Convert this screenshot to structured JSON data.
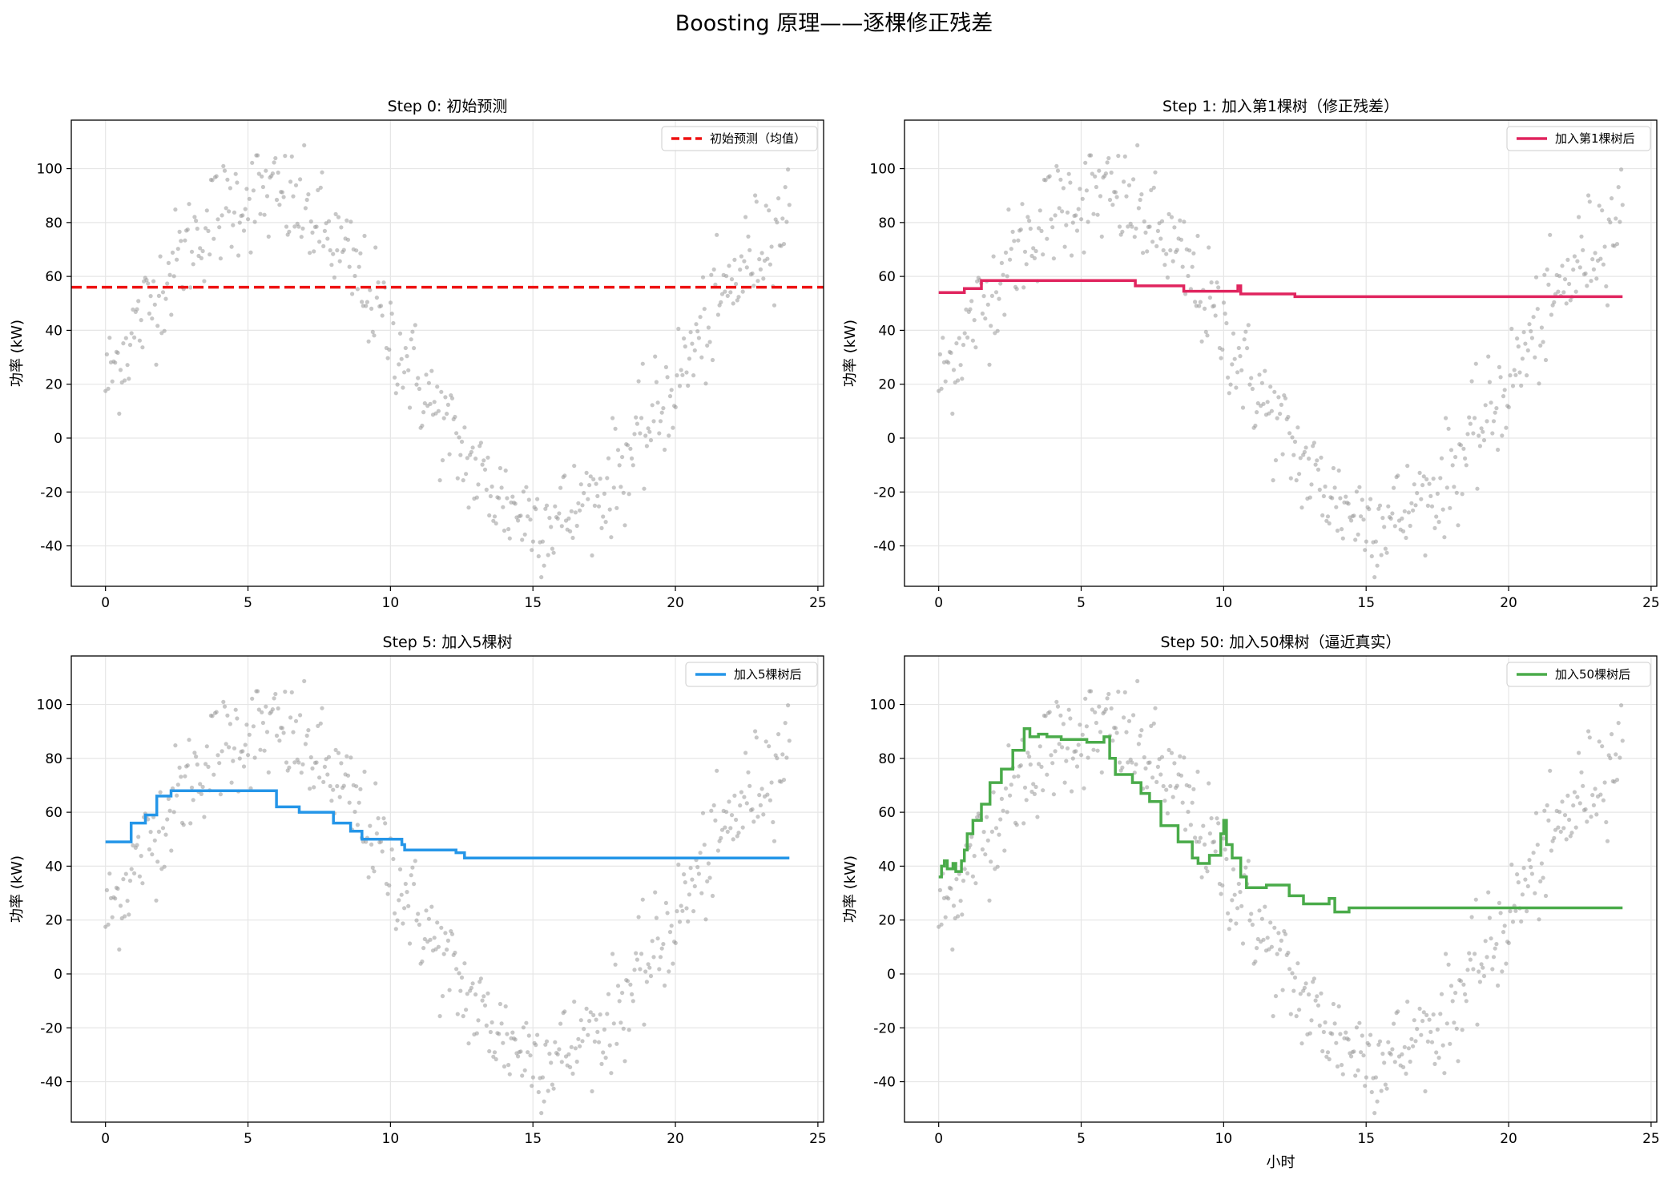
{
  "figure": {
    "title": "Boosting 原理——逐棵修正残差"
  },
  "colors": {
    "scatter": "#999999",
    "grid": "#e6e6e6",
    "axes": "#000000"
  },
  "chart_data": [
    {
      "type": "line",
      "title": "Step 0: 初始预测",
      "xlabel": "",
      "ylabel": "功率 (kW)",
      "xlim": [
        -1.2,
        25.2
      ],
      "ylim": [
        -55,
        118
      ],
      "xticks": [
        0,
        5,
        10,
        15,
        20,
        25
      ],
      "yticks": [
        -40,
        -20,
        0,
        20,
        40,
        60,
        80,
        100
      ],
      "grid": true,
      "legend_position": "top-right",
      "series": [
        {
          "name": "初始预测（均值）",
          "color": "#ee1111",
          "dashed": true,
          "x": [
            -1.2,
            25.2
          ],
          "y": [
            56,
            56
          ]
        }
      ]
    },
    {
      "type": "line",
      "title": "Step 1: 加入第1棵树（修正残差）",
      "xlabel": "",
      "ylabel": "功率 (kW)",
      "xlim": [
        -1.2,
        25.2
      ],
      "ylim": [
        -55,
        118
      ],
      "xticks": [
        0,
        5,
        10,
        15,
        20,
        25
      ],
      "yticks": [
        -40,
        -20,
        0,
        20,
        40,
        60,
        80,
        100
      ],
      "grid": true,
      "legend_position": "top-right",
      "series": [
        {
          "name": "加入第1棵树后",
          "color": "#e0245e",
          "dashed": false,
          "x": [
            0,
            0.9,
            0.9,
            1.5,
            1.5,
            6.9,
            6.9,
            8.6,
            8.6,
            10.5,
            10.5,
            10.6,
            10.6,
            12.5,
            12.5,
            24
          ],
          "y": [
            54,
            54,
            55.5,
            55.5,
            58.5,
            58.5,
            56.5,
            56.5,
            54.5,
            54.5,
            56.5,
            56.5,
            53.5,
            53.5,
            52.5,
            52.5
          ]
        }
      ]
    },
    {
      "type": "line",
      "title": "Step 5: 加入5棵树",
      "xlabel": "",
      "ylabel": "功率 (kW)",
      "xlim": [
        -1.2,
        25.2
      ],
      "ylim": [
        -55,
        118
      ],
      "xticks": [
        0,
        5,
        10,
        15,
        20,
        25
      ],
      "yticks": [
        -40,
        -20,
        0,
        20,
        40,
        60,
        80,
        100
      ],
      "grid": true,
      "legend_position": "top-right",
      "series": [
        {
          "name": "加入5棵树后",
          "color": "#2596e8",
          "dashed": false,
          "x": [
            0,
            0.9,
            0.9,
            1.4,
            1.4,
            1.8,
            1.8,
            2.3,
            2.3,
            6.0,
            6.0,
            6.8,
            6.8,
            8.0,
            8.0,
            8.6,
            8.6,
            9.0,
            9.0,
            10.4,
            10.4,
            10.5,
            10.5,
            12.3,
            12.3,
            12.6,
            12.6,
            24
          ],
          "y": [
            49,
            49,
            56,
            56,
            59,
            59,
            66,
            66,
            68,
            68,
            62,
            62,
            60,
            60,
            56,
            56,
            53,
            53,
            50,
            50,
            48,
            48,
            46,
            46,
            45,
            45,
            43,
            43
          ]
        }
      ]
    },
    {
      "type": "line",
      "title": "Step 50: 加入50棵树（逼近真实）",
      "xlabel": "小时",
      "ylabel": "功率 (kW)",
      "xlim": [
        -1.2,
        25.2
      ],
      "ylim": [
        -55,
        118
      ],
      "xticks": [
        0,
        5,
        10,
        15,
        20,
        25
      ],
      "yticks": [
        -40,
        -20,
        0,
        20,
        40,
        60,
        80,
        100
      ],
      "grid": true,
      "legend_position": "top-right",
      "series": [
        {
          "name": "加入50棵树后",
          "color": "#4aab4a",
          "dashed": false,
          "x": [
            0,
            0.1,
            0.1,
            0.2,
            0.2,
            0.3,
            0.3,
            0.5,
            0.5,
            0.6,
            0.6,
            0.8,
            0.8,
            0.9,
            0.9,
            1.0,
            1.0,
            1.2,
            1.2,
            1.5,
            1.5,
            1.8,
            1.8,
            2.2,
            2.2,
            2.6,
            2.6,
            3.0,
            3.0,
            3.2,
            3.2,
            3.5,
            3.5,
            3.8,
            3.8,
            4.3,
            4.3,
            5.2,
            5.2,
            5.8,
            5.8,
            6.0,
            6.0,
            6.2,
            6.2,
            6.8,
            6.8,
            7.1,
            7.1,
            7.4,
            7.4,
            7.8,
            7.8,
            8.4,
            8.4,
            8.9,
            8.9,
            9.1,
            9.1,
            9.5,
            9.5,
            9.9,
            9.9,
            10.0,
            10.0,
            10.1,
            10.1,
            10.3,
            10.3,
            10.6,
            10.6,
            10.8,
            10.8,
            11.5,
            11.5,
            12.3,
            12.3,
            12.8,
            12.8,
            13.7,
            13.7,
            13.9,
            13.9,
            14.4,
            14.4,
            24
          ],
          "y": [
            36,
            36,
            40,
            40,
            42,
            42,
            39,
            39,
            41,
            41,
            38,
            38,
            42,
            42,
            46,
            46,
            52,
            52,
            57,
            57,
            63,
            63,
            71,
            71,
            76,
            76,
            83,
            83,
            91,
            91,
            88,
            88,
            89,
            89,
            88,
            88,
            87,
            87,
            86,
            86,
            88,
            88,
            80,
            80,
            74,
            74,
            71,
            71,
            67,
            67,
            64,
            64,
            55,
            55,
            49,
            49,
            43,
            43,
            41,
            41,
            44,
            44,
            52,
            52,
            57,
            57,
            48,
            48,
            43,
            43,
            36,
            36,
            32,
            32,
            33,
            33,
            29,
            29,
            26,
            26,
            28,
            28,
            23,
            23,
            24.5,
            24.5
          ]
        }
      ]
    }
  ]
}
